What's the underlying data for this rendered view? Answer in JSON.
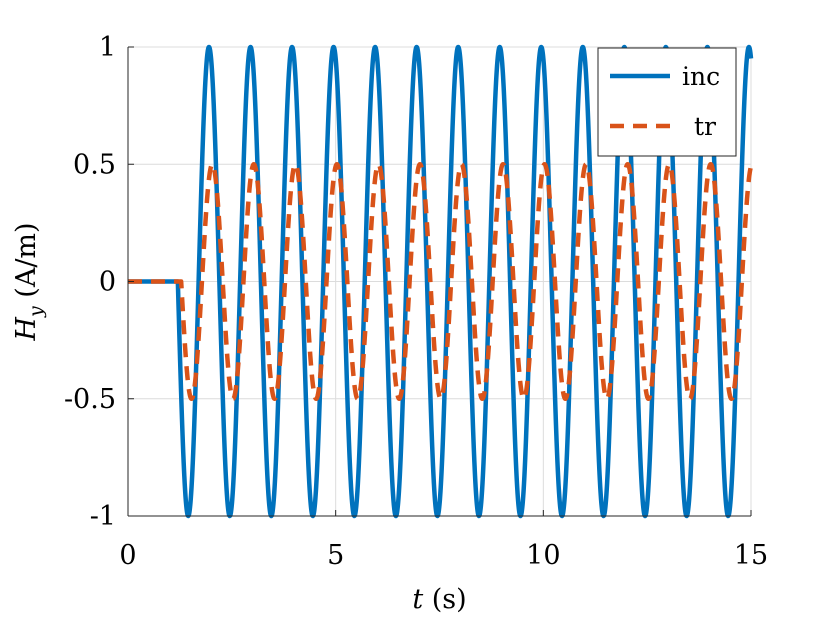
{
  "chart_data": {
    "type": "line",
    "xlabel_var": "t",
    "xlabel_unit": " (s)",
    "ylabel_var": "H",
    "ylabel_sub": "y",
    "ylabel_unit": " (A/m)",
    "xlim": [
      0,
      15
    ],
    "ylim": [
      -1,
      1
    ],
    "xticks": [
      0,
      5,
      10,
      15
    ],
    "xtick_labels": [
      "0",
      "5",
      "10",
      "15"
    ],
    "yticks": [
      -1,
      -0.5,
      0,
      0.5,
      1
    ],
    "ytick_labels": [
      "-1",
      "-0.5",
      "0",
      "0.5",
      "1"
    ],
    "grid": true,
    "legend_position": "top-right",
    "series": [
      {
        "name": "inc",
        "style": "solid",
        "color": "#0072BD",
        "onset_time": 1.2,
        "amplitude": 1,
        "period": 1.0,
        "value_before_onset": 0
      },
      {
        "name": "tr",
        "style": "dashed",
        "color": "#D95319",
        "onset_time": 1.28,
        "amplitude": 0.5,
        "period": 1.0,
        "value_before_onset": 0
      }
    ]
  }
}
